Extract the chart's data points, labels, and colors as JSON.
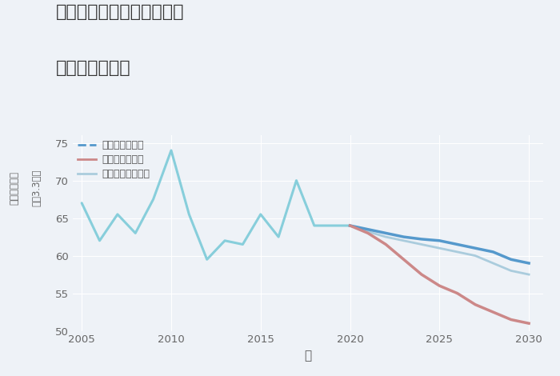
{
  "title_line1": "神奈川県伊勢原市上粕屋の",
  "title_line2": "土地の価格推移",
  "xlabel": "年",
  "ylabel_top": "単価（万円）",
  "ylabel_bottom": "坪（3.3㎡）",
  "xlim": [
    2004.5,
    2030.8
  ],
  "ylim": [
    50,
    76
  ],
  "yticks": [
    50,
    55,
    60,
    65,
    70,
    75
  ],
  "xticks": [
    2005,
    2010,
    2015,
    2020,
    2025,
    2030
  ],
  "bg_color": "#eef2f7",
  "plot_bg_color": "#eef2f7",
  "historical": {
    "years": [
      2005,
      2006,
      2007,
      2008,
      2009,
      2010,
      2011,
      2012,
      2013,
      2014,
      2015,
      2016,
      2017,
      2018,
      2019,
      2020
    ],
    "values": [
      67.0,
      62.0,
      65.5,
      63.0,
      67.5,
      74.0,
      65.5,
      59.5,
      62.0,
      61.5,
      65.5,
      62.5,
      70.0,
      64.0,
      64.0,
      64.0
    ]
  },
  "good_scenario": {
    "years": [
      2020,
      2021,
      2022,
      2023,
      2024,
      2025,
      2026,
      2027,
      2028,
      2029,
      2030
    ],
    "values": [
      64.0,
      63.5,
      63.0,
      62.5,
      62.2,
      62.0,
      61.5,
      61.0,
      60.5,
      59.5,
      59.0
    ]
  },
  "bad_scenario": {
    "years": [
      2020,
      2021,
      2022,
      2023,
      2024,
      2025,
      2026,
      2027,
      2028,
      2029,
      2030
    ],
    "values": [
      64.0,
      63.0,
      61.5,
      59.5,
      57.5,
      56.0,
      55.0,
      53.5,
      52.5,
      51.5,
      51.0
    ]
  },
  "normal_scenario": {
    "years": [
      2020,
      2021,
      2022,
      2023,
      2024,
      2025,
      2026,
      2027,
      2028,
      2029,
      2030
    ],
    "values": [
      64.0,
      63.2,
      62.5,
      62.0,
      61.5,
      61.0,
      60.5,
      60.0,
      59.0,
      58.0,
      57.5
    ]
  },
  "colors": {
    "historical": "#87CEDB",
    "good": "#5599cc",
    "bad": "#cc8888",
    "normal": "#aaccdd"
  },
  "legend_labels": [
    "グッドシナリオ",
    "バッドシナリオ",
    "ノーマルシナリオ"
  ],
  "legend_colors": [
    "#5599cc",
    "#cc8888",
    "#aaccdd"
  ],
  "legend_linestyles": [
    "--",
    "-",
    "-"
  ]
}
